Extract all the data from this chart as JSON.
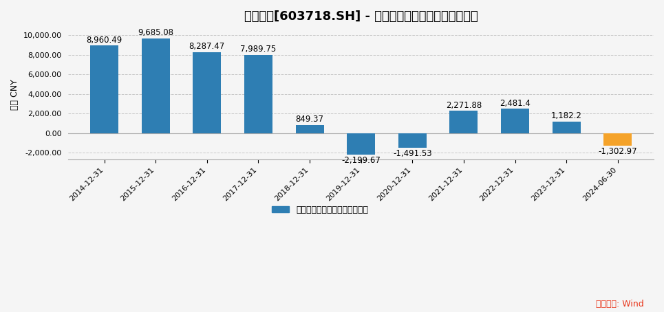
{
  "title": "海利生物[603718.SH] - 扣非后归属母公司股东的净利润",
  "ylabel": "万元 CNY",
  "categories": [
    "2014-12-31",
    "2015-12-31",
    "2016-12-31",
    "2017-12-31",
    "2018-12-31",
    "2019-12-31",
    "2020-12-31",
    "2021-12-31",
    "2022-12-31",
    "2023-12-31",
    "2024-06-30"
  ],
  "values": [
    8960.49,
    9685.08,
    8287.47,
    7989.75,
    849.37,
    -2199.67,
    -1491.53,
    2271.88,
    2481.4,
    1182.2,
    -1302.97
  ],
  "labels": [
    "8,960.49",
    "9,685.08",
    "8,287.47",
    "7,989.75",
    "849.37",
    "-2,199.67",
    "-1,491.53",
    "2,271.88",
    "2,481.4",
    "1,182.2",
    "-1,302.97"
  ],
  "bar_color_default": "#2e7eb3",
  "bar_color_special": "#f5a32a",
  "special_index": 10,
  "ylim": [
    -2700,
    10600
  ],
  "yticks": [
    -2000,
    0,
    2000,
    4000,
    6000,
    8000,
    10000
  ],
  "legend_label": "扣非后归属母公司股东的净利润",
  "legend_color": "#2e7eb3",
  "source_text": "数据来源: Wind",
  "source_color": "#e8351a",
  "background_color": "#f5f5f5",
  "grid_color": "#c8c8c8",
  "title_fontsize": 13,
  "label_fontsize": 8.5,
  "tick_fontsize": 8,
  "ylabel_fontsize": 9
}
